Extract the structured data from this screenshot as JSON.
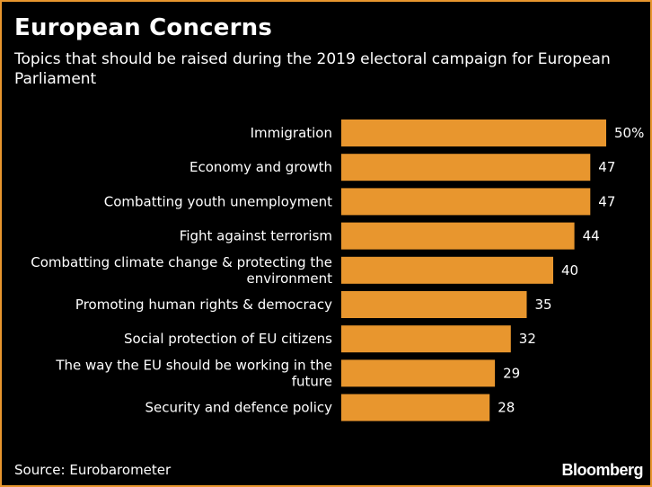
{
  "header": {
    "title": "European Concerns",
    "subtitle": "Topics that should be raised during the 2019 electoral campaign for European Parliament"
  },
  "footer": {
    "source": "Source: Eurobarometer",
    "brand": "Bloomberg"
  },
  "colors": {
    "bar": "#e8962e",
    "background": "#000000",
    "text": "#ffffff"
  },
  "chart_data": {
    "type": "bar",
    "orientation": "horizontal",
    "title": "European Concerns",
    "subtitle": "Topics that should be raised during the 2019 electoral campaign for European Parliament",
    "categories": [
      [
        "Immigration"
      ],
      [
        "Economy and growth"
      ],
      [
        "Combatting youth unemployment"
      ],
      [
        "Fight against terrorism"
      ],
      [
        "Combatting climate change & protecting the",
        "environment"
      ],
      [
        "Promoting human rights & democracy"
      ],
      [
        "Social protection of EU citizens"
      ],
      [
        "The way the EU should be working in the",
        "future"
      ],
      [
        "Security and defence policy"
      ]
    ],
    "values": [
      50,
      47,
      47,
      44,
      40,
      35,
      32,
      29,
      28
    ],
    "value_labels": [
      "50%",
      "47",
      "47",
      "44",
      "40",
      "35",
      "32",
      "29",
      "28"
    ],
    "unit": "%",
    "xlim": [
      0,
      50
    ],
    "xlabel": "",
    "ylabel": "",
    "grid": false
  }
}
